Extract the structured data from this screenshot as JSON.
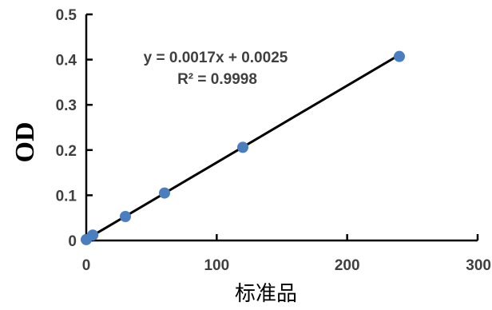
{
  "chart_data": {
    "type": "scatter",
    "title": "",
    "xlabel": "标准品",
    "ylabel": "OD",
    "xlim": [
      0,
      300
    ],
    "ylim": [
      0,
      0.5
    ],
    "x_ticks": [
      0,
      100,
      200,
      300
    ],
    "x_tick_labels": [
      "0",
      "100",
      "200",
      "300"
    ],
    "y_ticks": [
      0,
      0.1,
      0.2,
      0.3,
      0.4,
      0.5
    ],
    "y_tick_labels": [
      "0",
      "0.1",
      "0.2",
      "0.3",
      "0.4",
      "0.5"
    ],
    "grid": false,
    "legend": "none",
    "series": [
      {
        "x": [
          0,
          5,
          30,
          60,
          120,
          240
        ],
        "y": [
          0.002,
          0.012,
          0.053,
          0.105,
          0.206,
          0.407
        ],
        "marker_color": "#4a7ebf",
        "trendline": {
          "type": "linear",
          "slope": 0.0017,
          "intercept": 0.0025,
          "r_squared": 0.9998,
          "color": "#000000"
        }
      }
    ],
    "annotations": [
      {
        "text": "y = 0.0017x + 0.0025"
      },
      {
        "text": "R² = 0.9998"
      }
    ]
  }
}
